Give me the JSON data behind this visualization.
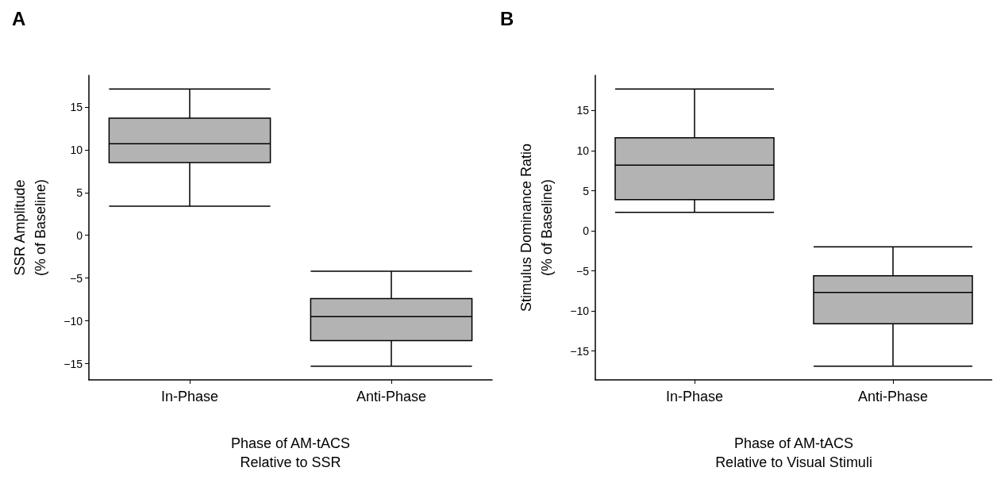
{
  "chart_data": [
    {
      "type": "box",
      "title": "A",
      "xlabel": "Phase of AM-tACS\nRelative to SSR",
      "ylabel": "SSR Amplitude\n(% of Baseline)",
      "categories": [
        "In-Phase",
        "Anti-Phase"
      ],
      "ylim": [
        -16.9,
        18.7
      ],
      "yticks": [
        -15,
        -10,
        -5,
        0,
        5,
        10,
        15
      ],
      "grid": false,
      "color": "#b3b3b3",
      "boxes": [
        {
          "low": 3.4,
          "q1": 8.5,
          "median": 10.7,
          "q3": 13.7,
          "high": 17.1
        },
        {
          "low": -15.3,
          "q1": -12.3,
          "median": -9.5,
          "q3": -7.4,
          "high": -4.2
        }
      ]
    },
    {
      "type": "box",
      "title": "B",
      "xlabel": "Phase of AM-tACS\nRelative to Visual Stimuli",
      "ylabel": "Stimulus Dominance Ratio\n(% of Baseline)",
      "categories": [
        "In-Phase",
        "Anti-Phase"
      ],
      "ylim": [
        -18.6,
        19.4
      ],
      "yticks": [
        -15,
        -10,
        -5,
        0,
        5,
        10,
        15
      ],
      "grid": false,
      "color": "#b3b3b3",
      "boxes": [
        {
          "low": 2.3,
          "q1": 3.9,
          "median": 8.2,
          "q3": 11.6,
          "high": 17.7
        },
        {
          "low": -16.9,
          "q1": -11.6,
          "median": -7.7,
          "q3": -5.6,
          "high": -2.0
        }
      ]
    }
  ]
}
